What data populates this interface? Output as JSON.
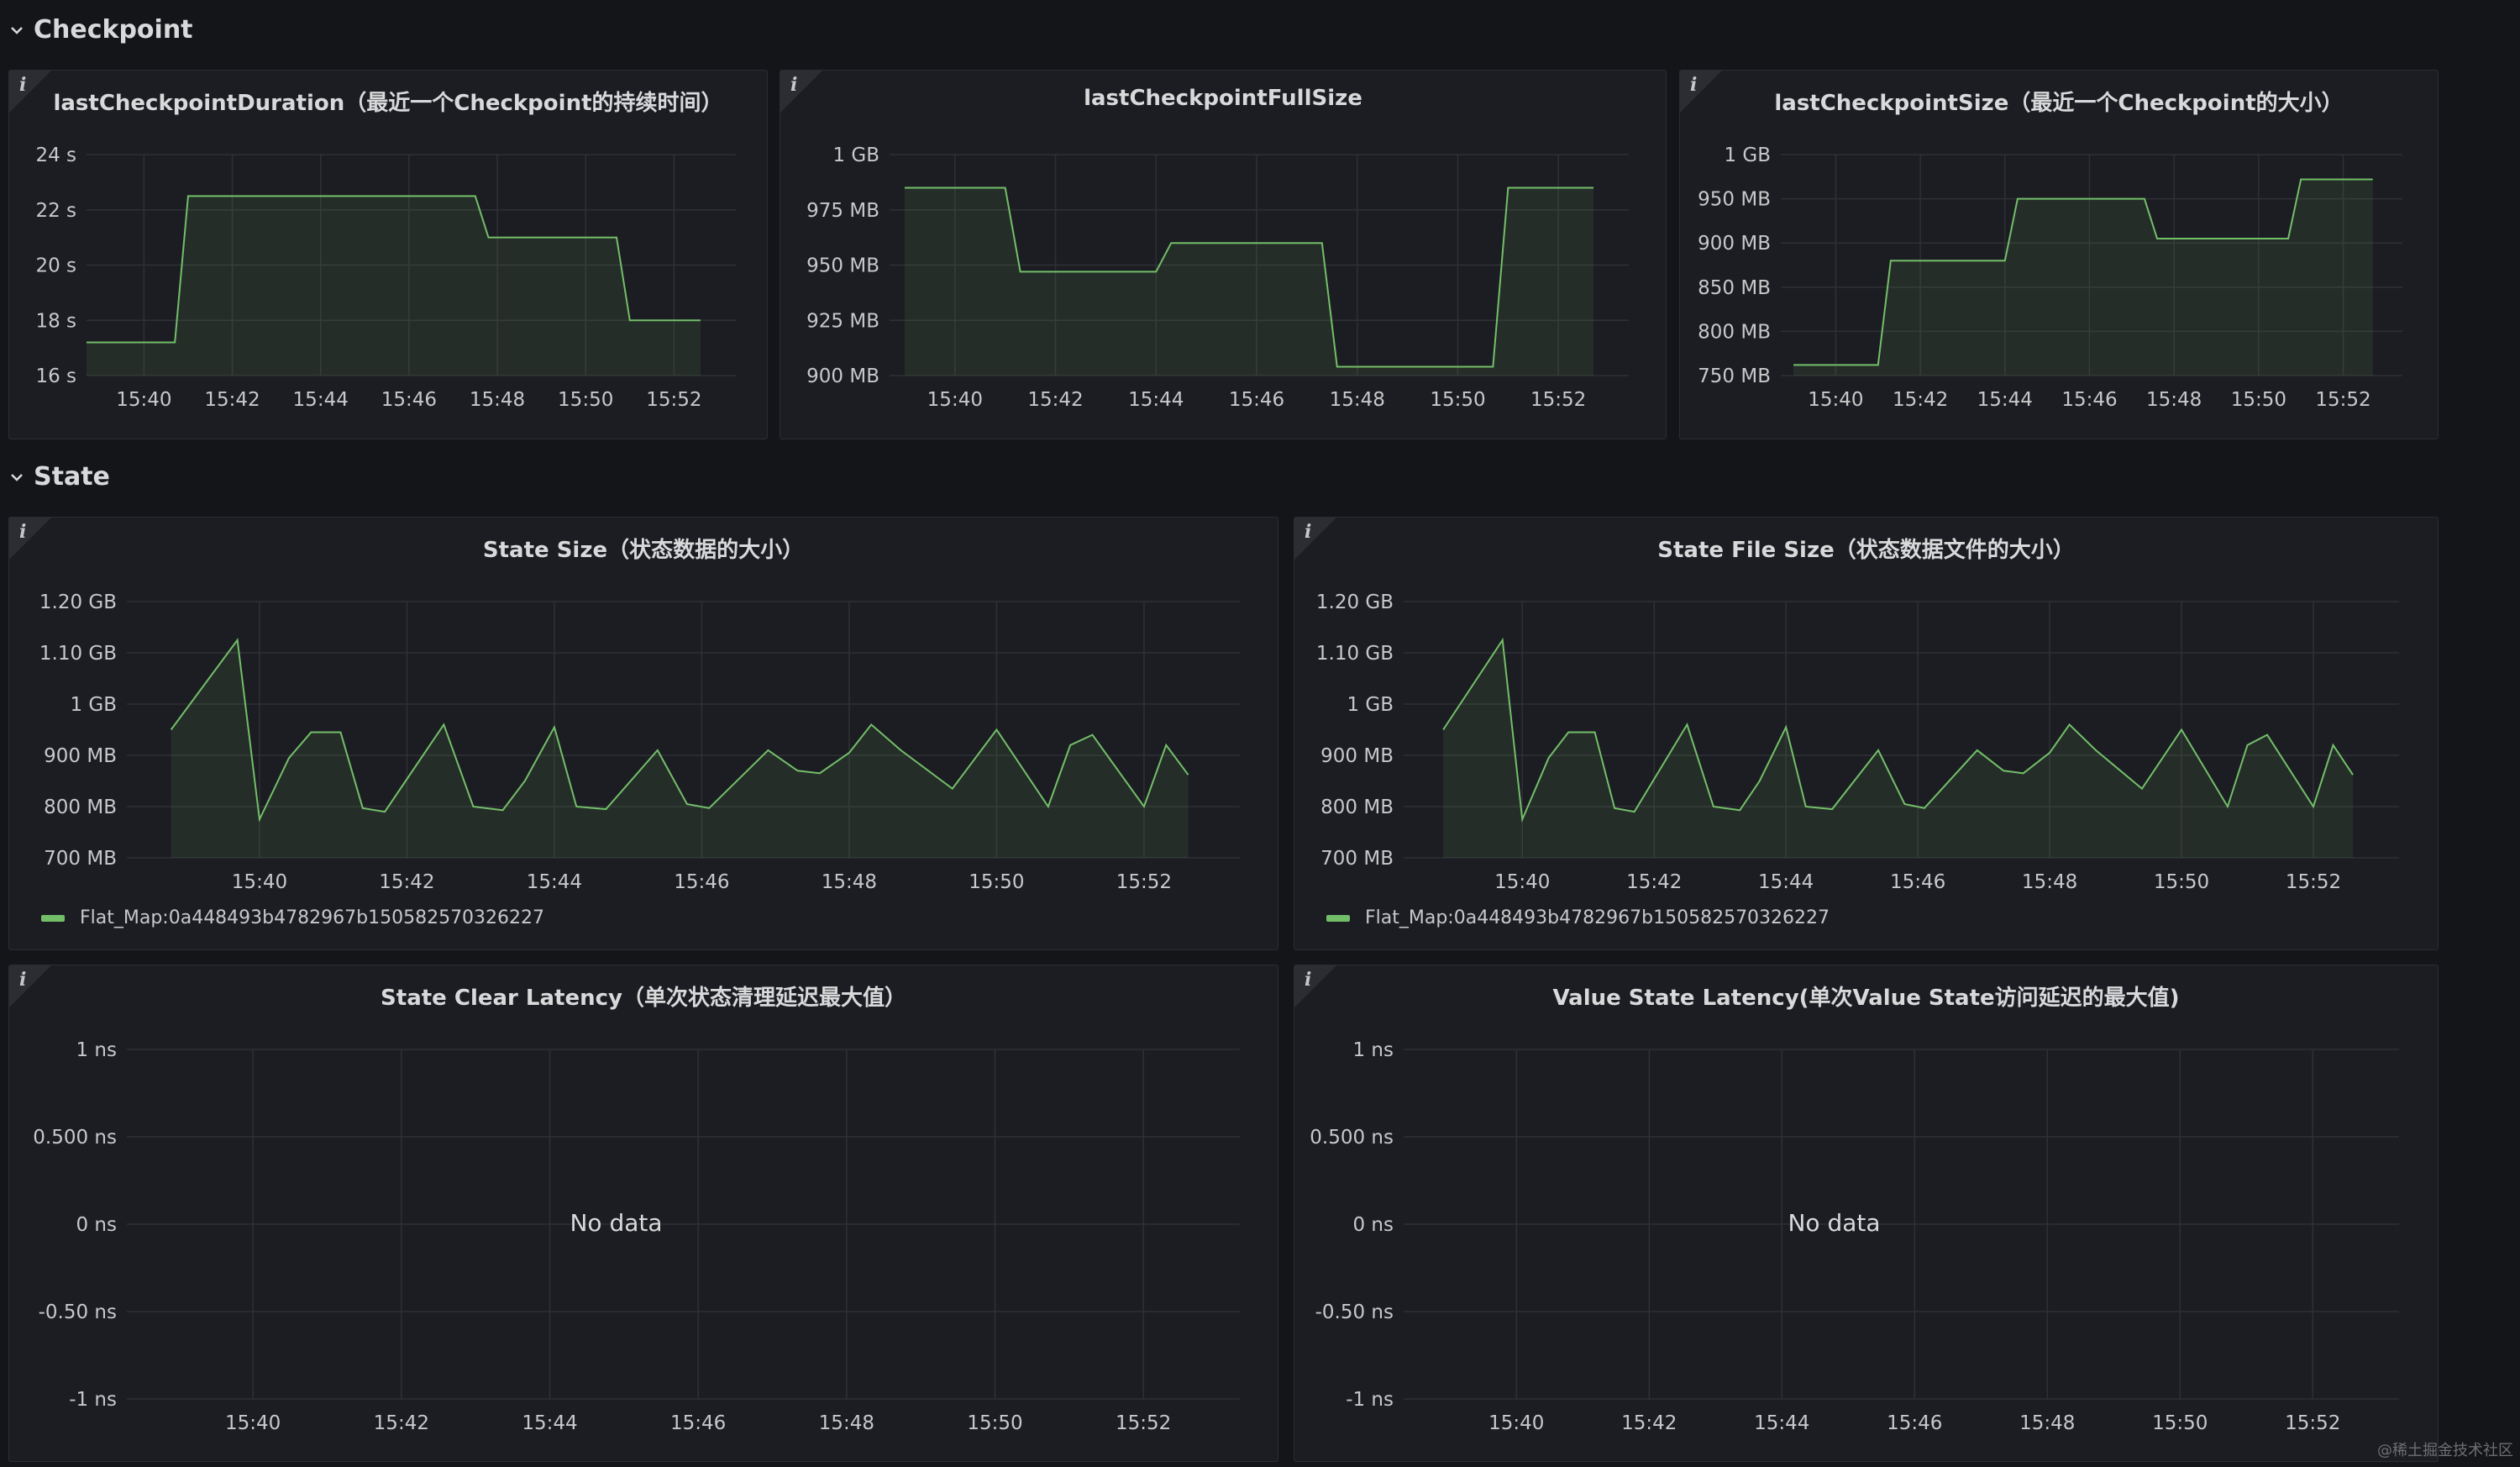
{
  "colors": {
    "background": "#141519",
    "panel": "#1c1d22",
    "grid": "#2f3035",
    "series": "#73bf69",
    "text": "#d8d9da"
  },
  "rows": [
    {
      "title": "Checkpoint",
      "icon": "chevron-down-icon"
    },
    {
      "title": "State",
      "icon": "chevron-down-icon"
    }
  ],
  "x_ticks": [
    "15:40",
    "15:42",
    "15:44",
    "15:46",
    "15:48",
    "15:50",
    "15:52"
  ],
  "no_data_text": "No data",
  "watermark": "@稀土掘金技术社区",
  "panels": [
    {
      "key": "p1",
      "title": "lastCheckpointDuration（最近一个Checkpoint的持续时间）",
      "y_ticks": [
        "24 s",
        "22 s",
        "20 s",
        "18 s",
        "16 s"
      ],
      "legend": ""
    },
    {
      "key": "p2",
      "title": "lastCheckpointFullSize",
      "y_ticks": [
        "1 GB",
        "975 MB",
        "950 MB",
        "925 MB",
        "900 MB"
      ],
      "legend": ""
    },
    {
      "key": "p3",
      "title": "lastCheckpointSize（最近一个Checkpoint的大小）",
      "y_ticks": [
        "1 GB",
        "950 MB",
        "900 MB",
        "850 MB",
        "800 MB",
        "750 MB"
      ],
      "legend": ""
    },
    {
      "key": "p4",
      "title": "State Size（状态数据的大小）",
      "y_ticks": [
        "1.20 GB",
        "1.10 GB",
        "1 GB",
        "900 MB",
        "800 MB",
        "700 MB"
      ],
      "legend": "Flat_Map:0a448493b4782967b150582570326227"
    },
    {
      "key": "p5",
      "title": "State File Size（状态数据文件的大小）",
      "y_ticks": [
        "1.20 GB",
        "1.10 GB",
        "1 GB",
        "900 MB",
        "800 MB",
        "700 MB"
      ],
      "legend": "Flat_Map:0a448493b4782967b150582570326227"
    },
    {
      "key": "p6",
      "title": "State Clear Latency（单次状态清理延迟最大值）",
      "y_ticks": [
        "1 ns",
        "0.500 ns",
        "0 ns",
        "-0.50 ns",
        "-1 ns"
      ],
      "legend": ""
    },
    {
      "key": "p7",
      "title": "Value State Latency(单次Value State访问延迟的最大值)",
      "y_ticks": [
        "1 ns",
        "0.500 ns",
        "0 ns",
        "-0.50 ns",
        "-1 ns"
      ],
      "legend": ""
    }
  ],
  "chart_data": [
    {
      "type": "area",
      "title": "lastCheckpointDuration（最近一个Checkpoint的持续时间）",
      "x_unit": "minutes",
      "xlim": [
        "15:38.7",
        "15:53.4"
      ],
      "ylim": [
        16,
        24
      ],
      "y_unit": "s",
      "x": [
        "15:38.7",
        "15:40.7",
        "15:41.0",
        "15:47.5",
        "15:47.8",
        "15:50.7",
        "15:51.0",
        "15:52.6"
      ],
      "series": [
        {
          "values": [
            17.2,
            17.2,
            22.5,
            22.5,
            21.0,
            21.0,
            18.0,
            18.0
          ]
        }
      ]
    },
    {
      "type": "area",
      "title": "lastCheckpointFullSize",
      "x_unit": "minutes",
      "xlim": [
        "15:38.7",
        "15:53.4"
      ],
      "ylim": [
        900,
        1000
      ],
      "y_unit": "MB",
      "x": [
        "15:39.0",
        "15:41.0",
        "15:41.3",
        "15:44.0",
        "15:44.3",
        "15:47.3",
        "15:47.6",
        "15:50.7",
        "15:51.0",
        "15:52.7"
      ],
      "series": [
        {
          "values": [
            985,
            985,
            947,
            947,
            960,
            960,
            904,
            904,
            985,
            985
          ]
        }
      ]
    },
    {
      "type": "area",
      "title": "lastCheckpointSize（最近一个Checkpoint的大小）",
      "x_unit": "minutes",
      "xlim": [
        "15:38.7",
        "15:53.4"
      ],
      "ylim": [
        750,
        1000
      ],
      "y_unit": "MB",
      "x": [
        "15:39.0",
        "15:41.0",
        "15:41.3",
        "15:44.0",
        "15:44.3",
        "15:47.3",
        "15:47.6",
        "15:50.7",
        "15:51.0",
        "15:52.7"
      ],
      "series": [
        {
          "values": [
            762,
            762,
            880,
            880,
            950,
            950,
            905,
            905,
            972,
            972
          ]
        }
      ]
    },
    {
      "type": "area",
      "title": "State Size（状态数据的大小）",
      "x_unit": "minutes",
      "xlim": [
        "15:38.2",
        "15:53.3"
      ],
      "ylim": [
        700,
        1200
      ],
      "y_unit": "MB",
      "legend": [
        "Flat_Map:0a448493b4782967b150582570326227"
      ],
      "x": [
        "15:38.8",
        "15:39.7",
        "15:40.0",
        "15:40.4",
        "15:40.7",
        "15:41.1",
        "15:41.4",
        "15:41.7",
        "15:42.5",
        "15:42.9",
        "15:43.3",
        "15:43.6",
        "15:44.0",
        "15:44.3",
        "15:44.7",
        "15:45.4",
        "15:45.8",
        "15:46.1",
        "15:46.9",
        "15:47.3",
        "15:47.6",
        "15:48.0",
        "15:48.3",
        "15:48.7",
        "15:49.4",
        "15:50.0",
        "15:50.7",
        "15:51.0",
        "15:51.3",
        "15:52.0",
        "15:52.3",
        "15:52.6"
      ],
      "series": [
        {
          "name": "Flat_Map:0a448493b4782967b150582570326227",
          "values": [
            950,
            1125,
            775,
            895,
            945,
            945,
            797,
            790,
            960,
            800,
            793,
            850,
            955,
            800,
            795,
            910,
            805,
            797,
            910,
            870,
            865,
            905,
            960,
            910,
            835,
            950,
            800,
            920,
            940,
            800,
            920,
            862
          ]
        }
      ]
    },
    {
      "type": "area",
      "title": "State File Size（状态数据文件的大小）",
      "x_unit": "minutes",
      "xlim": [
        "15:38.2",
        "15:53.3"
      ],
      "ylim": [
        700,
        1200
      ],
      "y_unit": "MB",
      "legend": [
        "Flat_Map:0a448493b4782967b150582570326227"
      ],
      "x": [
        "15:38.8",
        "15:39.7",
        "15:40.0",
        "15:40.4",
        "15:40.7",
        "15:41.1",
        "15:41.4",
        "15:41.7",
        "15:42.5",
        "15:42.9",
        "15:43.3",
        "15:43.6",
        "15:44.0",
        "15:44.3",
        "15:44.7",
        "15:45.4",
        "15:45.8",
        "15:46.1",
        "15:46.9",
        "15:47.3",
        "15:47.6",
        "15:48.0",
        "15:48.3",
        "15:48.7",
        "15:49.4",
        "15:50.0",
        "15:50.7",
        "15:51.0",
        "15:51.3",
        "15:52.0",
        "15:52.3",
        "15:52.6"
      ],
      "series": [
        {
          "name": "Flat_Map:0a448493b4782967b150582570326227",
          "values": [
            950,
            1125,
            775,
            895,
            945,
            945,
            797,
            790,
            960,
            800,
            793,
            850,
            955,
            800,
            795,
            910,
            805,
            797,
            910,
            870,
            865,
            905,
            960,
            910,
            835,
            950,
            800,
            920,
            940,
            800,
            920,
            862
          ]
        }
      ]
    },
    {
      "type": "line",
      "title": "State Clear Latency（单次状态清理延迟最大值）",
      "xlim": [
        "15:38.3",
        "15:53.3"
      ],
      "ylim": [
        -1,
        1
      ],
      "y_unit": "ns",
      "series": []
    },
    {
      "type": "line",
      "title": "Value State Latency(单次Value State访问延迟的最大值)",
      "xlim": [
        "15:38.3",
        "15:53.3"
      ],
      "ylim": [
        -1,
        1
      ],
      "y_unit": "ns",
      "series": []
    }
  ]
}
